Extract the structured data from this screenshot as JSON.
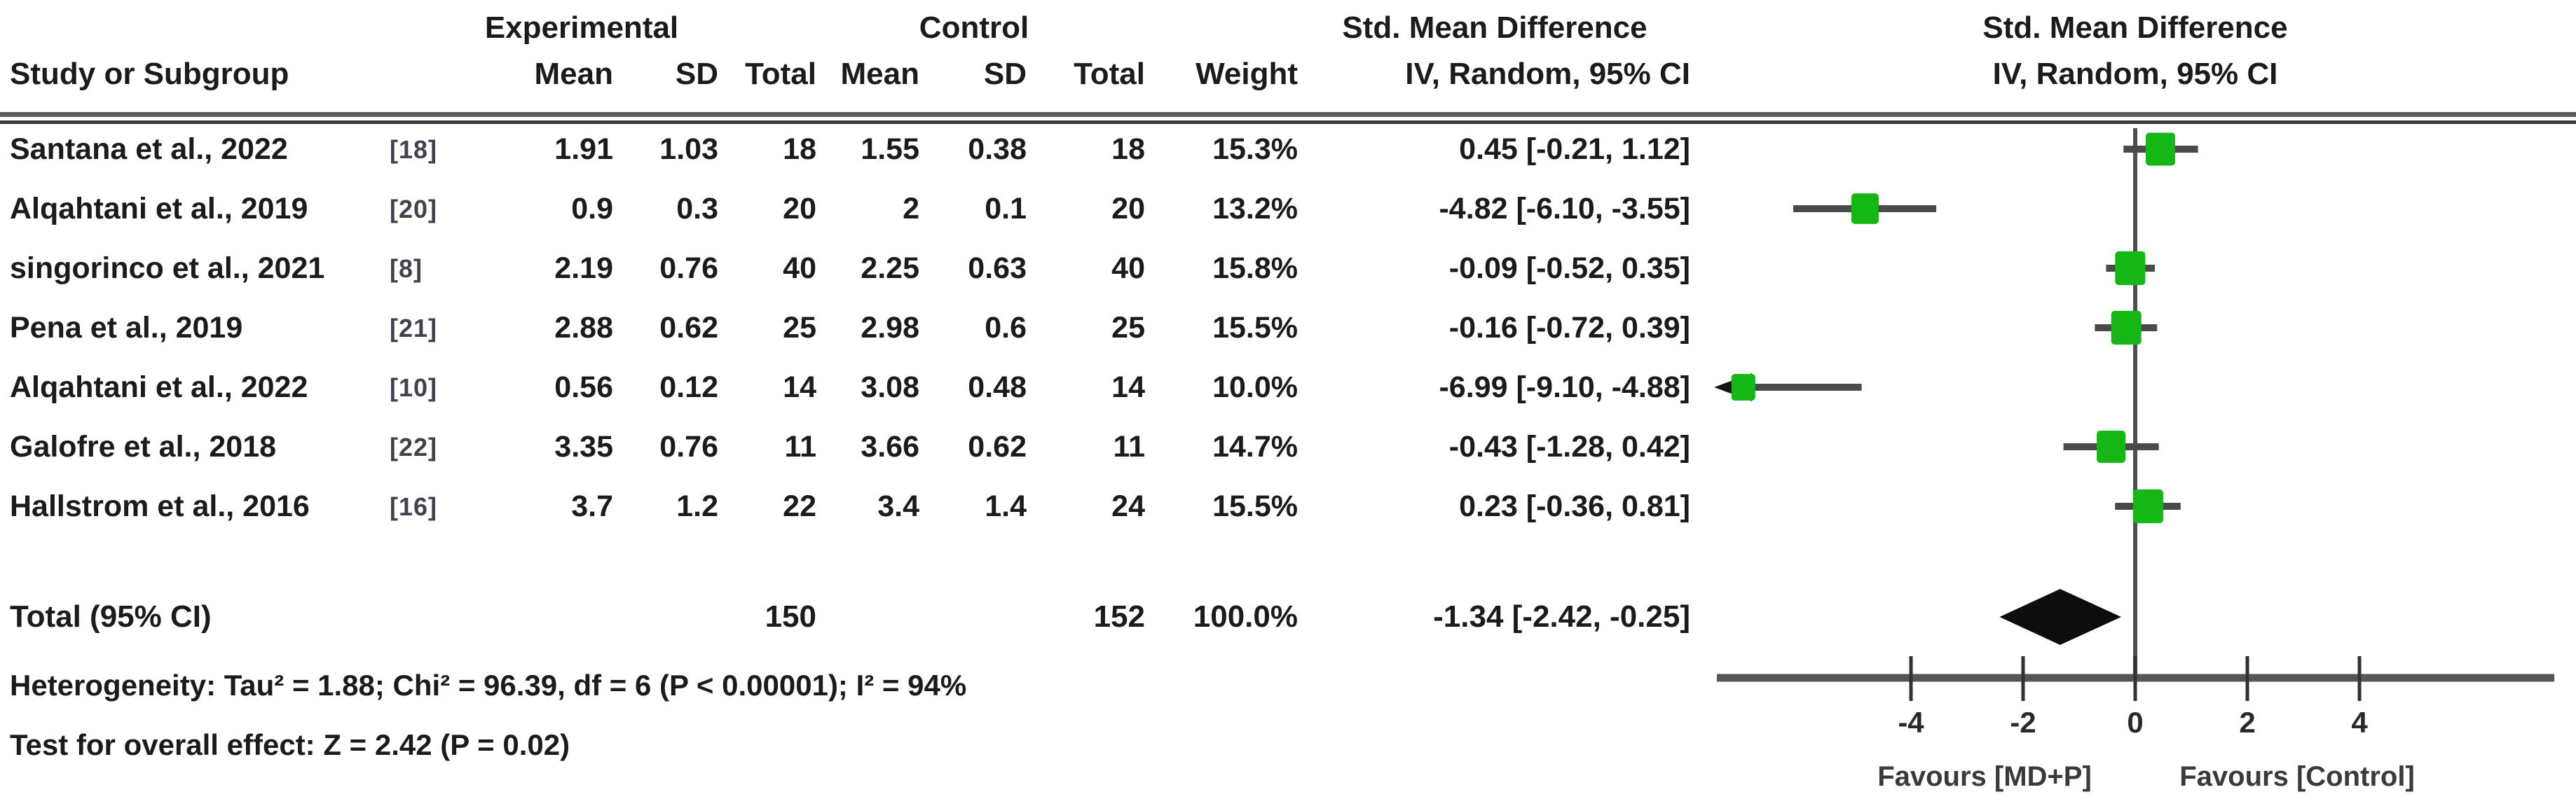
{
  "headers": {
    "group_experimental": "Experimental",
    "group_control": "Control",
    "group_smd_text": "Std. Mean Difference",
    "group_smd_plot": "Std. Mean Difference",
    "study": "Study or Subgroup",
    "mean": "Mean",
    "sd": "SD",
    "total": "Total",
    "weight": "Weight",
    "ci_method": "IV, Random, 95% CI",
    "ci_method_plot": "IV, Random, 95% CI"
  },
  "footer": {
    "heterogeneity": "Heterogeneity: Tau² = 1.88; Chi² = 96.39, df = 6 (P < 0.00001); I² = 94%",
    "overall_effect": "Test for overall effect: Z = 2.42 (P = 0.02)"
  },
  "chart_data": {
    "type": "forest",
    "effect_measure": "Std. Mean Difference",
    "method": "IV, Random, 95% CI",
    "axis": {
      "ticks": [
        -4,
        -2,
        0,
        2,
        4
      ],
      "xmin": -7.45,
      "xmax": 7.45,
      "favours_left": "Favours [MD+P]",
      "favours_right": "Favours [Control]"
    },
    "marker_color": "#15b715",
    "studies": [
      {
        "label": "Santana et al., 2022",
        "ref": "[18]",
        "exp_mean": "1.91",
        "exp_sd": "1.03",
        "exp_total": "18",
        "ctrl_mean": "1.55",
        "ctrl_sd": "0.38",
        "ctrl_total": "18",
        "weight": "15.3%",
        "weight_pct": 15.3,
        "smd": 0.45,
        "ci_low": -0.21,
        "ci_high": 1.12,
        "ci_text": "0.45 [-0.21, 1.12]"
      },
      {
        "label": "Alqahtani et al., 2019",
        "ref": "[20]",
        "exp_mean": "0.9",
        "exp_sd": "0.3",
        "exp_total": "20",
        "ctrl_mean": "2",
        "ctrl_sd": "0.1",
        "ctrl_total": "20",
        "weight": "13.2%",
        "weight_pct": 13.2,
        "smd": -4.82,
        "ci_low": -6.1,
        "ci_high": -3.55,
        "ci_text": "-4.82 [-6.10, -3.55]"
      },
      {
        "label": "singorinco et al., 2021",
        "ref": "[8]",
        "exp_mean": "2.19",
        "exp_sd": "0.76",
        "exp_total": "40",
        "ctrl_mean": "2.25",
        "ctrl_sd": "0.63",
        "ctrl_total": "40",
        "weight": "15.8%",
        "weight_pct": 15.8,
        "smd": -0.09,
        "ci_low": -0.52,
        "ci_high": 0.35,
        "ci_text": "-0.09 [-0.52, 0.35]"
      },
      {
        "label": "Pena et al., 2019",
        "ref": "[21]",
        "exp_mean": "2.88",
        "exp_sd": "0.62",
        "exp_total": "25",
        "ctrl_mean": "2.98",
        "ctrl_sd": "0.6",
        "ctrl_total": "25",
        "weight": "15.5%",
        "weight_pct": 15.5,
        "smd": -0.16,
        "ci_low": -0.72,
        "ci_high": 0.39,
        "ci_text": "-0.16 [-0.72, 0.39]"
      },
      {
        "label": "Alqahtani et al., 2022",
        "ref": "[10]",
        "exp_mean": "0.56",
        "exp_sd": "0.12",
        "exp_total": "14",
        "ctrl_mean": "3.08",
        "ctrl_sd": "0.48",
        "ctrl_total": "14",
        "weight": "10.0%",
        "weight_pct": 10.0,
        "smd": -6.99,
        "ci_low": -9.1,
        "ci_high": -4.88,
        "ci_text": "-6.99 [-9.10, -4.88]",
        "clipped_low": true
      },
      {
        "label": "Galofre et al., 2018",
        "ref": "[22]",
        "exp_mean": "3.35",
        "exp_sd": "0.76",
        "exp_total": "11",
        "ctrl_mean": "3.66",
        "ctrl_sd": "0.62",
        "ctrl_total": "11",
        "weight": "14.7%",
        "weight_pct": 14.7,
        "smd": -0.43,
        "ci_low": -1.28,
        "ci_high": 0.42,
        "ci_text": "-0.43 [-1.28, 0.42]"
      },
      {
        "label": "Hallstrom et al., 2016",
        "ref": "[16]",
        "exp_mean": "3.7",
        "exp_sd": "1.2",
        "exp_total": "22",
        "ctrl_mean": "3.4",
        "ctrl_sd": "1.4",
        "ctrl_total": "24",
        "weight": "15.5%",
        "weight_pct": 15.5,
        "smd": 0.23,
        "ci_low": -0.36,
        "ci_high": 0.81,
        "ci_text": "0.23 [-0.36, 0.81]"
      }
    ],
    "total": {
      "label": "Total (95% CI)",
      "exp_total": "150",
      "ctrl_total": "152",
      "weight": "100.0%",
      "smd": -1.34,
      "ci_low": -2.42,
      "ci_high": -0.25,
      "ci_text": "-1.34 [-2.42, -0.25]"
    }
  }
}
